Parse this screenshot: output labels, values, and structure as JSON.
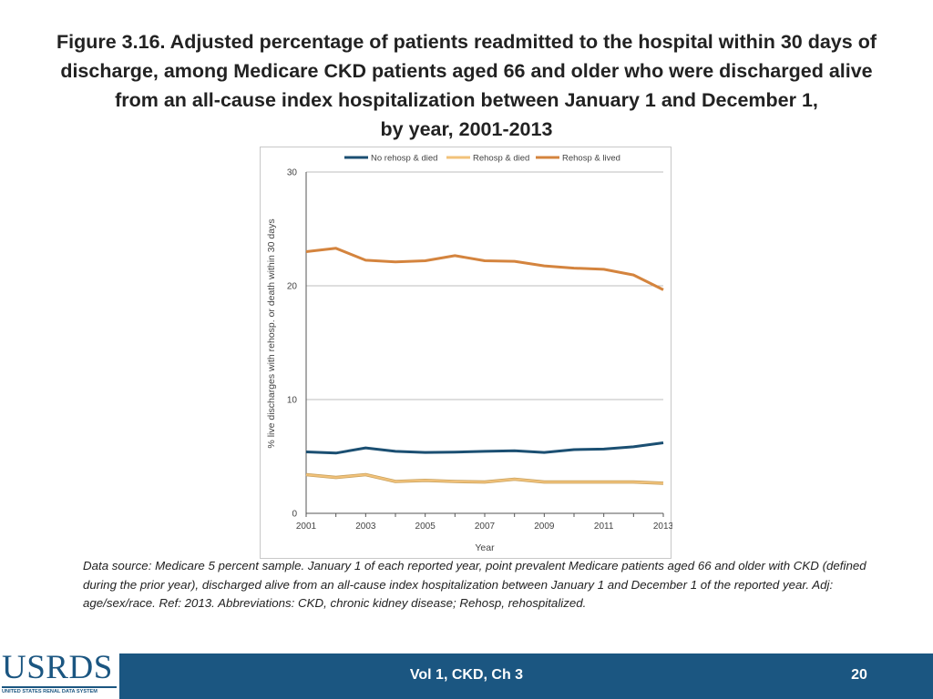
{
  "title": {
    "lines": [
      "Figure 3.16.  Adjusted percentage of patients readmitted to the hospital within 30 days of",
      "discharge, among Medicare CKD patients aged 66 and older who were discharged alive",
      "from an all-cause index hospitalization between January 1 and December 1,",
      "by year, 2001-2013"
    ]
  },
  "chart_data": {
    "type": "line",
    "xlabel": "Year",
    "ylabel": "% live discharges with rehosp. or death within 30 days",
    "ylim": [
      0,
      30
    ],
    "yticks": [
      0,
      10,
      20,
      30
    ],
    "x": [
      2001,
      2002,
      2003,
      2004,
      2005,
      2006,
      2007,
      2008,
      2009,
      2010,
      2011,
      2012,
      2013
    ],
    "xtick_labels": [
      "2001",
      "2003",
      "2005",
      "2007",
      "2009",
      "2011",
      "2013"
    ],
    "grid": "horizontal",
    "legend_position": "top",
    "series": [
      {
        "name": "No rehosp & died",
        "color": "#1b4f72",
        "values": [
          5.4,
          5.3,
          5.75,
          5.45,
          5.35,
          5.38,
          5.45,
          5.5,
          5.35,
          5.6,
          5.65,
          5.85,
          6.2
        ]
      },
      {
        "name": "Rehosp & died",
        "color": "#f2c27a",
        "values": [
          3.4,
          3.15,
          3.4,
          2.8,
          2.9,
          2.8,
          2.75,
          3.0,
          2.75,
          2.75,
          2.75,
          2.75,
          2.65
        ]
      },
      {
        "name": "Rehosp & lived",
        "color": "#d4843e",
        "values": [
          23.0,
          23.3,
          22.25,
          22.1,
          22.2,
          22.65,
          22.2,
          22.15,
          21.75,
          21.55,
          21.45,
          20.95,
          19.65
        ]
      }
    ]
  },
  "footnote": "Data source: Medicare 5 percent sample. January 1 of each reported year, point prevalent Medicare patients aged 66 and older with CKD (defined during the prior year), discharged alive from an all-cause index hospitalization between January 1 and December 1 of the reported year. Adj: age/sex/race. Ref: 2013. Abbreviations: CKD, chronic kidney disease; Rehosp, rehospitalized.",
  "logo": {
    "text": "USRDS",
    "subtitle": "UNITED STATES RENAL DATA SYSTEM"
  },
  "footer": {
    "center": "Vol 1, CKD, Ch 3",
    "page": "20"
  }
}
